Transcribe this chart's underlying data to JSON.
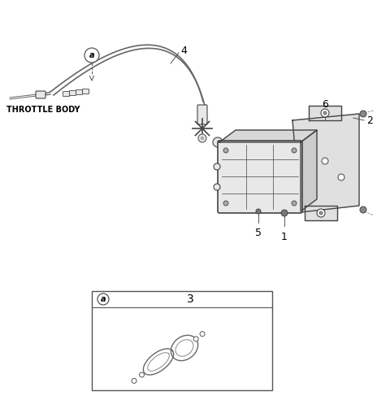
{
  "bg_color": "#ffffff",
  "fig_width": 4.8,
  "fig_height": 5.08,
  "dpi": 100,
  "labels": {
    "throttle_body": "THROTTLE BODY",
    "num1": "1",
    "num2": "2",
    "num3": "3",
    "num4": "4",
    "num5": "5",
    "num6": "6",
    "a_label": "a"
  },
  "line_color": "#555555",
  "text_color": "#000000",
  "cable_color": "#666666",
  "part_fill": "#e8e8e8",
  "part_edge": "#444444"
}
